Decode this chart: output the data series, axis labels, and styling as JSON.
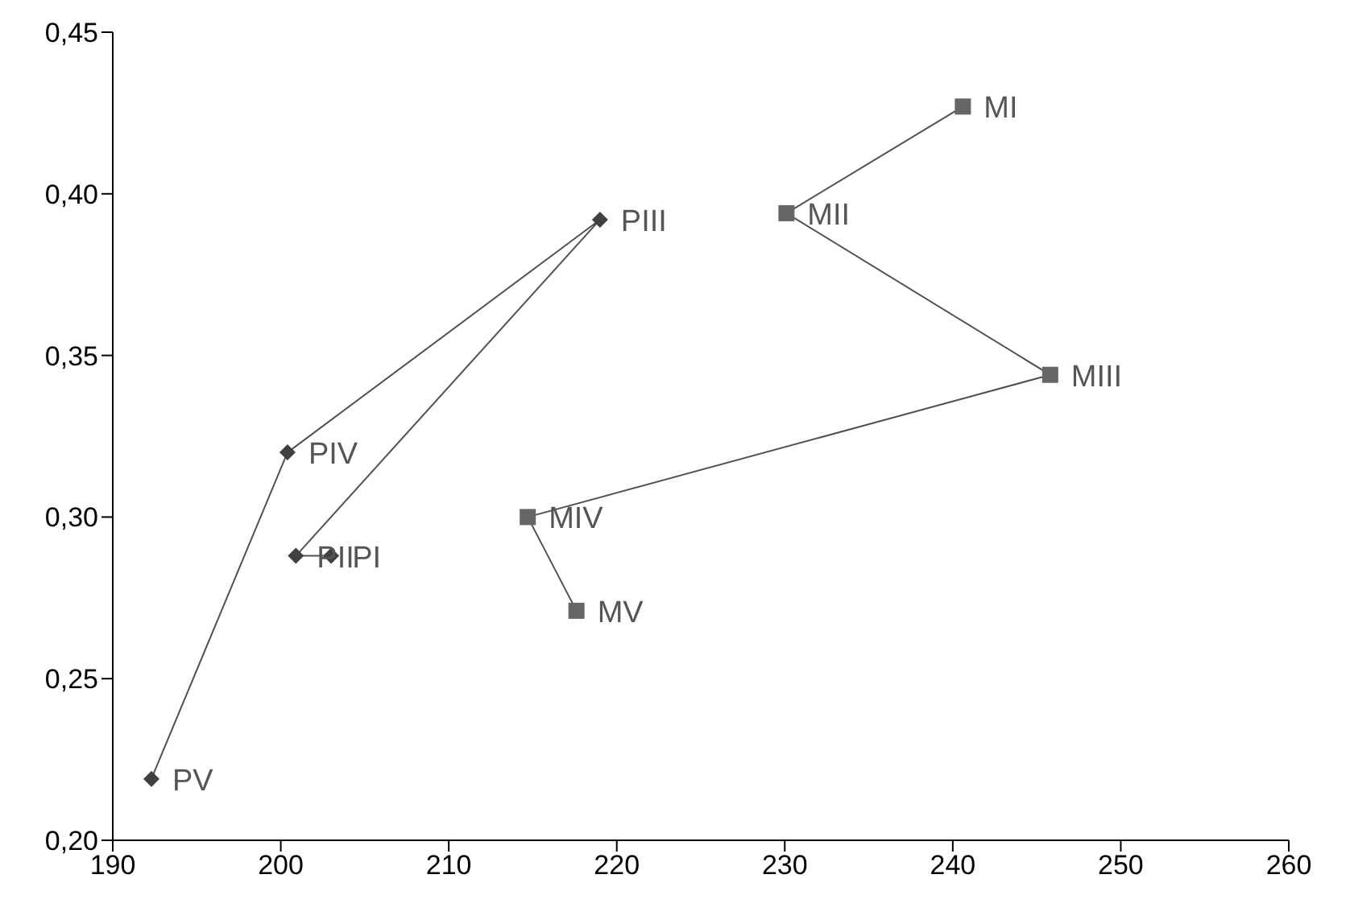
{
  "chart_data": {
    "type": "line",
    "xlim": [
      190,
      260
    ],
    "xticks": [
      190,
      200,
      210,
      220,
      230,
      240,
      250,
      260
    ],
    "ylim": [
      0.2,
      0.45
    ],
    "yticks": [
      {
        "value": 0.2,
        "label": "0,20"
      },
      {
        "value": 0.25,
        "label": "0,25"
      },
      {
        "value": 0.3,
        "label": "0,30"
      },
      {
        "value": 0.35,
        "label": "0,35"
      },
      {
        "value": 0.4,
        "label": "0,40"
      },
      {
        "value": 0.45,
        "label": "0,45"
      }
    ],
    "series": [
      {
        "color": "#404040",
        "marker": "diamond",
        "x": [
          203.0,
          200.9,
          219.0,
          200.4,
          192.3
        ],
        "values": [
          0.288,
          0.288,
          0.392,
          0.32,
          0.219
        ]
      },
      {
        "color": "#666666",
        "marker": "square",
        "x": [
          240.6,
          230.1,
          245.8,
          214.7,
          217.6
        ],
        "values": [
          0.427,
          0.394,
          0.344,
          0.3,
          0.271
        ]
      }
    ],
    "annotations": [
      {
        "text": "PI",
        "x": 203.0,
        "y": 0.288
      },
      {
        "text": "PII",
        "x": 200.9,
        "y": 0.288
      },
      {
        "text": "PIII",
        "x": 219.0,
        "y": 0.392
      },
      {
        "text": "PIV",
        "x": 200.4,
        "y": 0.32
      },
      {
        "text": "PV",
        "x": 192.3,
        "y": 0.219
      },
      {
        "text": "MI",
        "x": 240.6,
        "y": 0.427
      },
      {
        "text": "MII",
        "x": 230.1,
        "y": 0.394
      },
      {
        "text": "MIII",
        "x": 245.8,
        "y": 0.344
      },
      {
        "text": "MIV",
        "x": 214.7,
        "y": 0.3
      },
      {
        "text": "MV",
        "x": 217.6,
        "y": 0.271
      }
    ]
  }
}
